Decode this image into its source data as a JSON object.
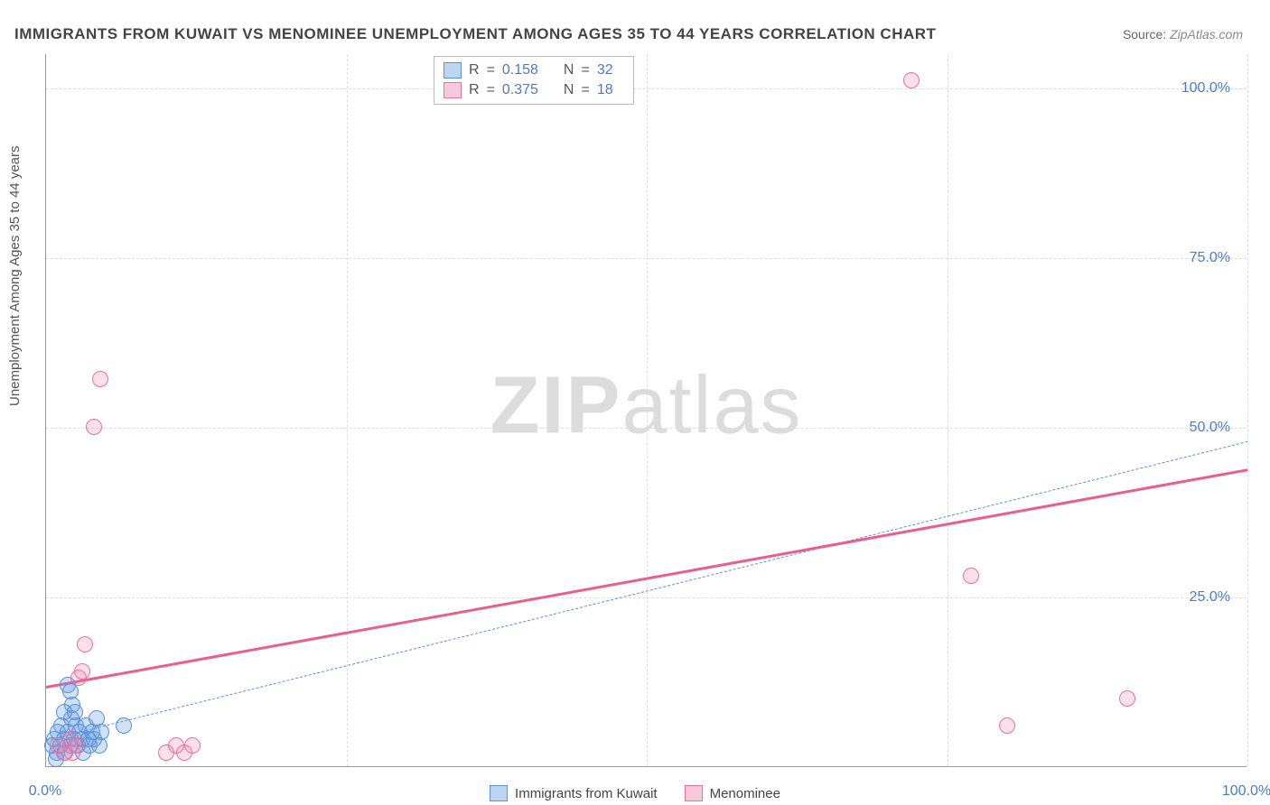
{
  "title": "IMMIGRANTS FROM KUWAIT VS MENOMINEE UNEMPLOYMENT AMONG AGES 35 TO 44 YEARS CORRELATION CHART",
  "source": {
    "label": "Source:",
    "value": "ZipAtlas.com"
  },
  "y_axis_label": "Unemployment Among Ages 35 to 44 years",
  "watermark": {
    "part1": "ZIP",
    "part2": "atlas"
  },
  "chart": {
    "type": "scatter",
    "xlim": [
      0,
      100
    ],
    "ylim": [
      0,
      105
    ],
    "x_ticks": [
      0,
      100
    ],
    "x_tick_labels": [
      "0.0%",
      "100.0%"
    ],
    "y_ticks": [
      25,
      50,
      75,
      100
    ],
    "y_tick_labels": [
      "25.0%",
      "50.0%",
      "75.0%",
      "100.0%"
    ],
    "x_grid": [
      25,
      50,
      75,
      100
    ],
    "background_color": "#ffffff",
    "grid_color": "#dddddd",
    "axis_color": "#999999",
    "tick_label_color": "#4a7bc8",
    "title_fontsize": 17,
    "tick_fontsize": 16,
    "point_radius": 9,
    "point_stroke_width": 1.5,
    "series": [
      {
        "name": "Immigrants from Kuwait",
        "R": "0.158",
        "N": "32",
        "color_fill": "rgba(100,160,230,0.30)",
        "color_stroke": "#5b8fd6",
        "swatch_fill": "#bcd5f2",
        "swatch_border": "#5b8fd6",
        "trend": {
          "x1": 0,
          "y1": 4.0,
          "x2": 100,
          "y2": 48.0,
          "style": "dashed",
          "width": 1.5,
          "color": "#5b8fd6"
        },
        "points": [
          {
            "x": 0.5,
            "y": 3
          },
          {
            "x": 0.7,
            "y": 4
          },
          {
            "x": 0.9,
            "y": 2
          },
          {
            "x": 1.0,
            "y": 5
          },
          {
            "x": 1.2,
            "y": 3
          },
          {
            "x": 1.3,
            "y": 6
          },
          {
            "x": 1.5,
            "y": 4
          },
          {
            "x": 1.6,
            "y": 2
          },
          {
            "x": 1.8,
            "y": 5
          },
          {
            "x": 2.0,
            "y": 3
          },
          {
            "x": 2.1,
            "y": 7
          },
          {
            "x": 2.3,
            "y": 4
          },
          {
            "x": 2.5,
            "y": 6
          },
          {
            "x": 2.6,
            "y": 3
          },
          {
            "x": 2.8,
            "y": 5
          },
          {
            "x": 3.0,
            "y": 4
          },
          {
            "x": 3.1,
            "y": 2
          },
          {
            "x": 3.3,
            "y": 6
          },
          {
            "x": 3.5,
            "y": 4
          },
          {
            "x": 3.6,
            "y": 3
          },
          {
            "x": 3.8,
            "y": 5
          },
          {
            "x": 4.0,
            "y": 4
          },
          {
            "x": 4.2,
            "y": 7
          },
          {
            "x": 4.4,
            "y": 3
          },
          {
            "x": 4.6,
            "y": 5
          },
          {
            "x": 1.8,
            "y": 12
          },
          {
            "x": 2.0,
            "y": 11
          },
          {
            "x": 2.2,
            "y": 9
          },
          {
            "x": 1.5,
            "y": 8
          },
          {
            "x": 2.4,
            "y": 8
          },
          {
            "x": 6.5,
            "y": 6
          },
          {
            "x": 0.8,
            "y": 1
          }
        ]
      },
      {
        "name": "Menominee",
        "R": "0.375",
        "N": "18",
        "color_fill": "rgba(240,130,170,0.25)",
        "color_stroke": "#e6719e",
        "swatch_fill": "#f7c9da",
        "swatch_border": "#e6719e",
        "trend": {
          "x1": 0,
          "y1": 12.0,
          "x2": 100,
          "y2": 44.0,
          "style": "solid",
          "width": 3,
          "color": "#ea5e8e"
        },
        "points": [
          {
            "x": 1.0,
            "y": 3
          },
          {
            "x": 1.5,
            "y": 2
          },
          {
            "x": 2.0,
            "y": 4
          },
          {
            "x": 2.2,
            "y": 2
          },
          {
            "x": 2.5,
            "y": 3
          },
          {
            "x": 2.7,
            "y": 13
          },
          {
            "x": 3.0,
            "y": 14
          },
          {
            "x": 3.2,
            "y": 18
          },
          {
            "x": 4.0,
            "y": 50
          },
          {
            "x": 4.5,
            "y": 57
          },
          {
            "x": 10.0,
            "y": 2
          },
          {
            "x": 10.8,
            "y": 3
          },
          {
            "x": 11.5,
            "y": 2
          },
          {
            "x": 12.2,
            "y": 3
          },
          {
            "x": 72.0,
            "y": 101
          },
          {
            "x": 77.0,
            "y": 28
          },
          {
            "x": 80.0,
            "y": 6
          },
          {
            "x": 90.0,
            "y": 10
          }
        ]
      }
    ]
  },
  "legend_top": {
    "r_label": "R",
    "n_label": "N",
    "eq": "="
  },
  "legend_bottom": {
    "items": [
      "Immigrants from Kuwait",
      "Menominee"
    ]
  }
}
